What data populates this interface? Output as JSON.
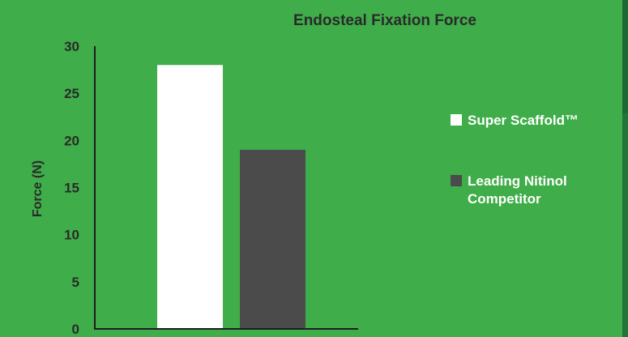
{
  "chart_data": {
    "type": "bar",
    "title": "Endosteal Fixation Force",
    "ylabel": "Force (N)",
    "xlabel": "",
    "categories": [
      "Super Scaffold™",
      "Leading Nitinol Competitor"
    ],
    "values": [
      28,
      19
    ],
    "ylim": [
      0,
      30
    ],
    "yticks": [
      0,
      5,
      10,
      15,
      20,
      25,
      30
    ],
    "grid": false,
    "legend_position": "right",
    "colors": [
      "#ffffff",
      "#4b4b4b"
    ]
  },
  "legend": {
    "items": [
      {
        "label": "Super Scaffold™",
        "color": "#ffffff"
      },
      {
        "label": "Leading Nitinol Competitor",
        "color": "#4b4b4b"
      }
    ]
  },
  "background_color": "#3fad49"
}
